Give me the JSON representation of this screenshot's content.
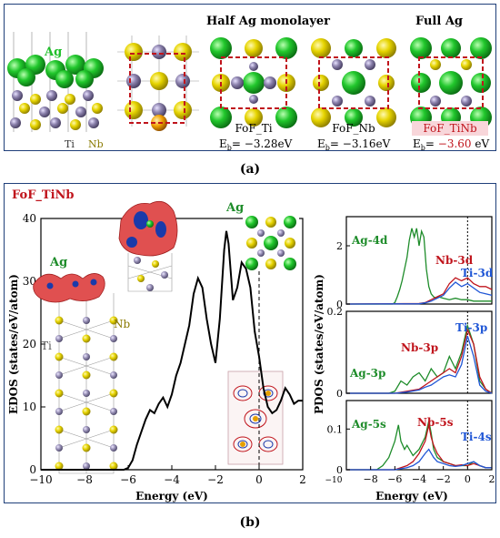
{
  "figure": {
    "caption_a": "(a)",
    "caption_b": "(b)"
  },
  "panel_a": {
    "header_half": "Half Ag monolayer",
    "header_full": "Full Ag",
    "side_labels": {
      "ag": "Ag",
      "ti": "Ti",
      "nb": "Nb"
    },
    "structures": [
      {
        "name": "FoF_Ti",
        "eb_prefix": "E",
        "eb_sub": "b",
        "eb_value": "= −3.28eV",
        "highlight": false
      },
      {
        "name": "FoF_Nb",
        "eb_prefix": "E",
        "eb_sub": "b",
        "eb_value": "= −3.16eV",
        "highlight": false
      },
      {
        "name": "FoF_TiNb",
        "eb_prefix": "E",
        "eb_sub": "b",
        "eb_value_pre": "= ",
        "eb_value_num": "−3.60",
        "eb_value_post": " eV",
        "highlight": true
      }
    ],
    "colors": {
      "ag": "#1fbf2a",
      "nb": "#e8d500",
      "ti": "#8a7fa8",
      "highlight_red": "#c0141c",
      "header_red": "#c0141c"
    }
  },
  "panel_b": {
    "title": "FoF_TiNb",
    "inset_labels": {
      "ag_top": "Ag",
      "ag_slab": "Ag",
      "ti": "Ti",
      "nb": "Nb"
    },
    "edos": {
      "ylabel": "EDOS (states/eV/atom)",
      "xlabel": "Energy (eV)",
      "xticks": [
        "−10",
        "−8",
        "−6",
        "−4",
        "−2",
        "0",
        "2"
      ],
      "yticks": [
        "0",
        "10",
        "20",
        "30",
        "40"
      ]
    },
    "pdos": {
      "ylabel": "PDOS (states/eV/atom)",
      "xlabel": "Energy (eV)",
      "xticks": [
        "−8",
        "−6",
        "−4",
        "−2",
        "0",
        "2"
      ],
      "xtick_first": "−10",
      "subplots": [
        {
          "yticks": [
            "0",
            "2"
          ],
          "labels": [
            "Ag-4d",
            "Nb-3d",
            "Ti-3d"
          ]
        },
        {
          "yticks": [
            "0",
            "0.2"
          ],
          "labels": [
            "Ti-3p",
            "Nb-3p",
            "Ag-3p"
          ]
        },
        {
          "yticks": [
            "0",
            "0.1"
          ],
          "labels": [
            "Ag-5s",
            "Nb-5s",
            "Ti-4s"
          ]
        }
      ]
    },
    "colors": {
      "ag": "#1e8c2a",
      "nb": "#c0141c",
      "ti": "#1f56d6",
      "title_red": "#c0141c",
      "axis": "#000000"
    }
  },
  "chart_data": [
    {
      "type": "line",
      "panel": "b-edos",
      "xlabel": "Energy (eV)",
      "ylabel": "EDOS (states/eV/atom)",
      "xlim": [
        -10,
        2
      ],
      "ylim": [
        0,
        40
      ],
      "fermi_level": 0,
      "series": [
        {
          "x": [
            -10,
            -6.2,
            -6.0,
            -5.8,
            -5.6,
            -5.4,
            -5.2,
            -5.0,
            -4.8,
            -4.6,
            -4.4,
            -4.2,
            -4.0,
            -3.8,
            -3.6,
            -3.4,
            -3.2,
            -3.0,
            -2.8,
            -2.6,
            -2.4,
            -2.2,
            -2.0,
            -1.8,
            -1.6,
            -1.5,
            -1.4,
            -1.2,
            -1.0,
            -0.8,
            -0.6,
            -0.4,
            -0.2,
            0.0,
            0.2,
            0.4,
            0.6,
            0.8,
            1.0,
            1.2,
            1.4,
            1.6,
            1.8,
            2.0
          ],
          "y": [
            0,
            0,
            0.3,
            1.5,
            4,
            6,
            8,
            9.5,
            9,
            10.5,
            11.5,
            10,
            12,
            15,
            17,
            20,
            23,
            28,
            30.5,
            29,
            24,
            20,
            17,
            24,
            35,
            38,
            36,
            27,
            29,
            33,
            32,
            29,
            22,
            18,
            13,
            10,
            9,
            9.5,
            11,
            13,
            12,
            10.5,
            11,
            11
          ]
        }
      ]
    },
    {
      "type": "line",
      "panel": "b-pdos-d",
      "xlim": [
        -10,
        2
      ],
      "ylim": [
        0,
        3
      ],
      "series": [
        {
          "name": "Ag-4d",
          "x": [
            -10,
            -6.2,
            -6,
            -5.8,
            -5.6,
            -5.4,
            -5.2,
            -5,
            -4.8,
            -4.6,
            -4.4,
            -4.2,
            -4,
            -3.8,
            -3.6,
            -3.4,
            -3.2,
            -3,
            -2.8,
            -2.6,
            -2.4,
            -2,
            -1.5,
            -1,
            -0.5,
            0,
            0.5,
            1,
            1.5,
            2
          ],
          "y": [
            0,
            0,
            0.05,
            0.25,
            0.5,
            0.8,
            1.2,
            1.6,
            2.2,
            2.6,
            2.3,
            2.6,
            2.0,
            2.5,
            2.3,
            1.2,
            0.6,
            0.35,
            0.25,
            0.2,
            0.25,
            0.2,
            0.15,
            0.2,
            0.15,
            0.15,
            0.1,
            0.1,
            0.1,
            0.1
          ]
        },
        {
          "name": "Nb-3d",
          "x": [
            -10,
            -4,
            -3.5,
            -3,
            -2.5,
            -2,
            -1.5,
            -1,
            -0.5,
            0,
            0.5,
            1,
            1.5,
            2
          ],
          "y": [
            0,
            0.02,
            0.05,
            0.15,
            0.25,
            0.35,
            0.7,
            0.9,
            0.8,
            0.9,
            0.7,
            0.6,
            0.6,
            0.5
          ]
        },
        {
          "name": "Ti-3d",
          "x": [
            -10,
            -4,
            -3.5,
            -3,
            -2.5,
            -2,
            -1.5,
            -1,
            -0.5,
            0,
            0.5,
            1,
            1.5,
            2
          ],
          "y": [
            0,
            0.01,
            0.04,
            0.1,
            0.2,
            0.3,
            0.55,
            0.75,
            0.6,
            0.7,
            0.55,
            0.4,
            0.35,
            0.3
          ]
        }
      ]
    },
    {
      "type": "line",
      "panel": "b-pdos-p",
      "xlim": [
        -10,
        2
      ],
      "ylim": [
        0,
        0.2
      ],
      "series": [
        {
          "name": "Ag-3p",
          "x": [
            -10,
            -6.5,
            -6,
            -5.5,
            -5,
            -4.5,
            -4,
            -3.5,
            -3,
            -2.5,
            -2,
            -1.5,
            -1,
            -0.5,
            0,
            0.5,
            1,
            1.5,
            2
          ],
          "y": [
            0,
            0,
            0.005,
            0.03,
            0.02,
            0.04,
            0.05,
            0.03,
            0.06,
            0.04,
            0.05,
            0.09,
            0.06,
            0.1,
            0.165,
            0.12,
            0.03,
            0.01,
            0.0
          ]
        },
        {
          "name": "Nb-3p",
          "x": [
            -10,
            -6,
            -5,
            -4,
            -3.5,
            -3,
            -2.5,
            -2,
            -1.5,
            -1,
            -0.5,
            0,
            0.5,
            1,
            1.5,
            2
          ],
          "y": [
            0,
            0,
            0.005,
            0.01,
            0.02,
            0.03,
            0.04,
            0.05,
            0.06,
            0.05,
            0.09,
            0.155,
            0.12,
            0.04,
            0.01,
            0.0
          ]
        },
        {
          "name": "Ti-3p",
          "x": [
            -10,
            -6,
            -5,
            -4,
            -3.5,
            -3,
            -2.5,
            -2,
            -1.5,
            -1,
            -0.5,
            0,
            0.5,
            1,
            1.5,
            2
          ],
          "y": [
            0,
            0,
            0.003,
            0.008,
            0.015,
            0.02,
            0.03,
            0.04,
            0.045,
            0.04,
            0.07,
            0.14,
            0.09,
            0.02,
            0.005,
            0.0
          ]
        }
      ]
    },
    {
      "type": "line",
      "panel": "b-pdos-s",
      "xlim": [
        -10,
        2
      ],
      "ylim": [
        0,
        0.17
      ],
      "series": [
        {
          "name": "Ag-5s",
          "x": [
            -10,
            -7.5,
            -7,
            -6.5,
            -6,
            -5.7,
            -5.5,
            -5.2,
            -5,
            -4.5,
            -4,
            -3.5,
            -3.2,
            -3,
            -2.8,
            -2.5,
            -2,
            -1.5,
            -1,
            -0.5,
            0,
            0.5,
            1,
            1.5,
            2
          ],
          "y": [
            0,
            0,
            0.01,
            0.03,
            0.07,
            0.11,
            0.07,
            0.05,
            0.06,
            0.035,
            0.05,
            0.08,
            0.12,
            0.09,
            0.05,
            0.03,
            0.02,
            0.015,
            0.01,
            0.01,
            0.01,
            0.02,
            0.01,
            0.005,
            0.005
          ]
        },
        {
          "name": "Nb-5s",
          "x": [
            -10,
            -6,
            -5,
            -4.5,
            -4,
            -3.5,
            -3.2,
            -3,
            -2.8,
            -2.5,
            -2,
            -1.5,
            -1,
            -0.5,
            0,
            0.5,
            1,
            1.5,
            2
          ],
          "y": [
            0,
            0,
            0.01,
            0.02,
            0.04,
            0.07,
            0.11,
            0.08,
            0.06,
            0.04,
            0.02,
            0.015,
            0.01,
            0.012,
            0.01,
            0.015,
            0.01,
            0.005,
            0.005
          ]
        },
        {
          "name": "Ti-4s",
          "x": [
            -10,
            -6,
            -5,
            -4.5,
            -4,
            -3.5,
            -3.2,
            -3,
            -2.8,
            -2.5,
            -2,
            -1.5,
            -1,
            -0.5,
            0,
            0.5,
            1,
            1.5,
            2
          ],
          "y": [
            0,
            0,
            0.005,
            0.01,
            0.02,
            0.04,
            0.05,
            0.04,
            0.03,
            0.02,
            0.015,
            0.01,
            0.008,
            0.01,
            0.015,
            0.02,
            0.01,
            0.005,
            0.005
          ]
        }
      ]
    }
  ]
}
